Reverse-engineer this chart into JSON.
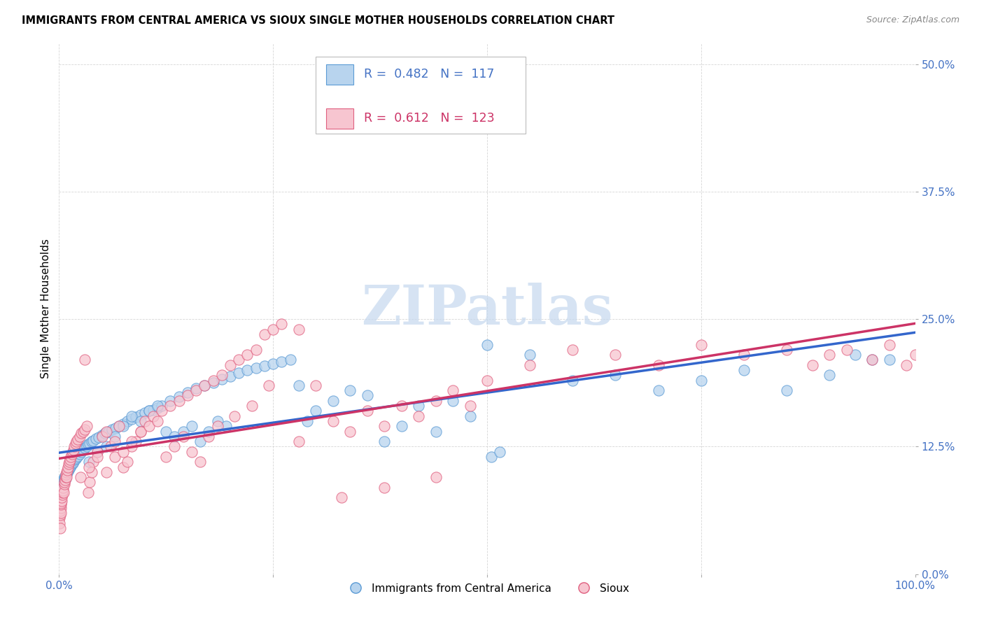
{
  "title": "IMMIGRANTS FROM CENTRAL AMERICA VS SIOUX SINGLE MOTHER HOUSEHOLDS CORRELATION CHART",
  "source": "Source: ZipAtlas.com",
  "ylabel": "Single Mother Households",
  "ytick_values": [
    0.0,
    12.5,
    25.0,
    37.5,
    50.0
  ],
  "legend_label_blue": "Immigrants from Central America",
  "legend_label_pink": "Sioux",
  "legend_r_blue": "0.482",
  "legend_n_blue": "117",
  "legend_r_pink": "0.612",
  "legend_n_pink": "123",
  "color_blue_fill": "#B8D4EE",
  "color_blue_edge": "#5B9BD5",
  "color_pink_fill": "#F7C5D0",
  "color_pink_edge": "#E06080",
  "color_blue_line": "#3366CC",
  "color_pink_line": "#CC3366",
  "color_blue_text": "#4472C4",
  "color_pink_text": "#CC3366",
  "grid_color": "#CCCCCC",
  "background_color": "#FFFFFF",
  "watermark_color": "#C5D8EE",
  "blue_scatter_x": [
    0.05,
    0.08,
    0.1,
    0.12,
    0.15,
    0.18,
    0.2,
    0.22,
    0.25,
    0.28,
    0.3,
    0.33,
    0.35,
    0.38,
    0.4,
    0.42,
    0.45,
    0.48,
    0.5,
    0.55,
    0.6,
    0.65,
    0.7,
    0.75,
    0.8,
    0.85,
    0.9,
    0.95,
    1.0,
    1.1,
    1.2,
    1.3,
    1.4,
    1.5,
    1.6,
    1.7,
    1.8,
    1.9,
    2.0,
    2.2,
    2.4,
    2.6,
    2.8,
    3.0,
    3.2,
    3.4,
    3.6,
    3.8,
    4.0,
    4.3,
    4.6,
    5.0,
    5.4,
    5.8,
    6.2,
    6.6,
    7.0,
    7.5,
    8.0,
    8.5,
    9.0,
    9.5,
    10.0,
    10.5,
    11.0,
    11.5,
    12.0,
    13.0,
    14.0,
    15.0,
    16.0,
    17.0,
    18.0,
    19.0,
    20.0,
    21.0,
    22.0,
    23.0,
    24.0,
    25.0,
    26.0,
    27.0,
    28.0,
    29.0,
    30.0,
    32.0,
    34.0,
    36.0,
    38.0,
    40.0,
    42.0,
    44.0,
    46.0,
    48.0,
    50.0,
    55.0,
    60.0,
    65.0,
    70.0,
    75.0,
    80.0,
    85.0,
    90.0,
    93.0,
    95.0,
    97.0,
    50.5,
    51.5,
    3.5,
    4.5,
    5.5,
    6.5,
    7.5,
    8.5,
    9.5,
    10.5,
    11.5,
    12.5,
    13.5,
    14.5,
    15.5,
    16.5,
    17.5,
    18.5,
    19.5
  ],
  "blue_scatter_y": [
    7.8,
    8.0,
    8.2,
    8.0,
    7.6,
    8.2,
    8.4,
    8.0,
    8.5,
    8.3,
    8.6,
    8.7,
    8.5,
    8.8,
    8.9,
    9.0,
    9.2,
    9.0,
    9.1,
    9.3,
    9.4,
    9.5,
    9.6,
    9.4,
    9.7,
    9.8,
    9.9,
    10.0,
    10.1,
    10.2,
    10.4,
    10.5,
    10.6,
    10.8,
    10.9,
    11.0,
    11.2,
    11.3,
    11.4,
    11.6,
    11.8,
    12.0,
    12.2,
    12.4,
    12.5,
    12.7,
    12.8,
    13.0,
    13.1,
    13.3,
    13.4,
    13.6,
    13.8,
    14.0,
    14.2,
    14.3,
    14.5,
    14.7,
    15.0,
    15.2,
    15.4,
    15.6,
    15.8,
    16.0,
    16.1,
    16.3,
    16.5,
    17.0,
    17.4,
    17.8,
    18.2,
    18.5,
    18.8,
    19.1,
    19.4,
    19.7,
    20.0,
    20.2,
    20.4,
    20.6,
    20.8,
    21.0,
    18.5,
    15.0,
    16.0,
    17.0,
    18.0,
    17.5,
    13.0,
    14.5,
    16.5,
    14.0,
    17.0,
    15.5,
    22.5,
    21.5,
    19.0,
    19.5,
    18.0,
    19.0,
    20.0,
    18.0,
    19.5,
    21.5,
    21.0,
    21.0,
    11.5,
    12.0,
    11.0,
    12.0,
    12.5,
    13.5,
    14.5,
    15.5,
    15.0,
    16.0,
    16.5,
    14.0,
    13.5,
    14.0,
    14.5,
    13.0,
    14.0,
    15.0,
    14.5
  ],
  "pink_scatter_x": [
    0.05,
    0.08,
    0.1,
    0.12,
    0.15,
    0.18,
    0.2,
    0.22,
    0.25,
    0.28,
    0.3,
    0.35,
    0.4,
    0.45,
    0.5,
    0.55,
    0.6,
    0.65,
    0.7,
    0.75,
    0.8,
    0.85,
    0.9,
    0.95,
    1.0,
    1.1,
    1.2,
    1.3,
    1.4,
    1.5,
    1.6,
    1.7,
    1.8,
    1.9,
    2.0,
    2.2,
    2.4,
    2.6,
    2.8,
    3.0,
    3.2,
    3.4,
    3.6,
    3.8,
    4.0,
    4.5,
    5.0,
    5.5,
    6.0,
    6.5,
    7.0,
    7.5,
    8.0,
    8.5,
    9.0,
    9.5,
    10.0,
    11.0,
    12.0,
    13.0,
    14.0,
    15.0,
    16.0,
    17.0,
    18.0,
    19.0,
    20.0,
    21.0,
    22.0,
    23.0,
    24.0,
    25.0,
    26.0,
    28.0,
    30.0,
    32.0,
    34.0,
    36.0,
    38.0,
    40.0,
    42.0,
    44.0,
    46.0,
    48.0,
    50.0,
    55.0,
    60.0,
    65.0,
    70.0,
    75.0,
    80.0,
    85.0,
    88.0,
    90.0,
    92.0,
    95.0,
    97.0,
    99.0,
    100.0,
    2.5,
    3.5,
    4.5,
    5.5,
    6.5,
    7.5,
    8.5,
    9.5,
    10.5,
    11.5,
    12.5,
    13.5,
    14.5,
    15.5,
    16.5,
    17.5,
    18.5,
    20.5,
    22.5,
    24.5,
    28.0,
    33.0,
    38.0,
    44.0,
    3.0
  ],
  "pink_scatter_y": [
    5.5,
    5.0,
    4.5,
    5.8,
    6.2,
    6.5,
    6.0,
    6.8,
    7.0,
    7.2,
    7.5,
    7.8,
    8.0,
    8.2,
    8.5,
    8.0,
    8.8,
    9.0,
    9.2,
    9.5,
    9.8,
    10.0,
    9.5,
    10.2,
    10.5,
    10.8,
    11.0,
    11.2,
    11.5,
    11.8,
    12.0,
    12.2,
    12.5,
    12.8,
    13.0,
    13.2,
    13.5,
    13.8,
    14.0,
    14.2,
    14.5,
    8.0,
    9.0,
    10.0,
    11.0,
    12.0,
    13.5,
    14.0,
    12.5,
    13.0,
    14.5,
    10.5,
    11.0,
    12.5,
    13.0,
    14.0,
    15.0,
    15.5,
    16.0,
    16.5,
    17.0,
    17.5,
    18.0,
    18.5,
    19.0,
    19.5,
    20.5,
    21.0,
    21.5,
    22.0,
    23.5,
    24.0,
    24.5,
    24.0,
    18.5,
    15.0,
    14.0,
    16.0,
    14.5,
    16.5,
    15.5,
    17.0,
    18.0,
    16.5,
    19.0,
    20.5,
    22.0,
    21.5,
    20.5,
    22.5,
    21.5,
    22.0,
    20.5,
    21.5,
    22.0,
    21.0,
    22.5,
    20.5,
    21.5,
    9.5,
    10.5,
    11.5,
    10.0,
    11.5,
    12.0,
    13.0,
    14.0,
    14.5,
    15.0,
    11.5,
    12.5,
    13.5,
    12.0,
    11.0,
    13.5,
    14.5,
    15.5,
    16.5,
    18.5,
    13.0,
    7.5,
    8.5,
    9.5,
    21.0
  ]
}
